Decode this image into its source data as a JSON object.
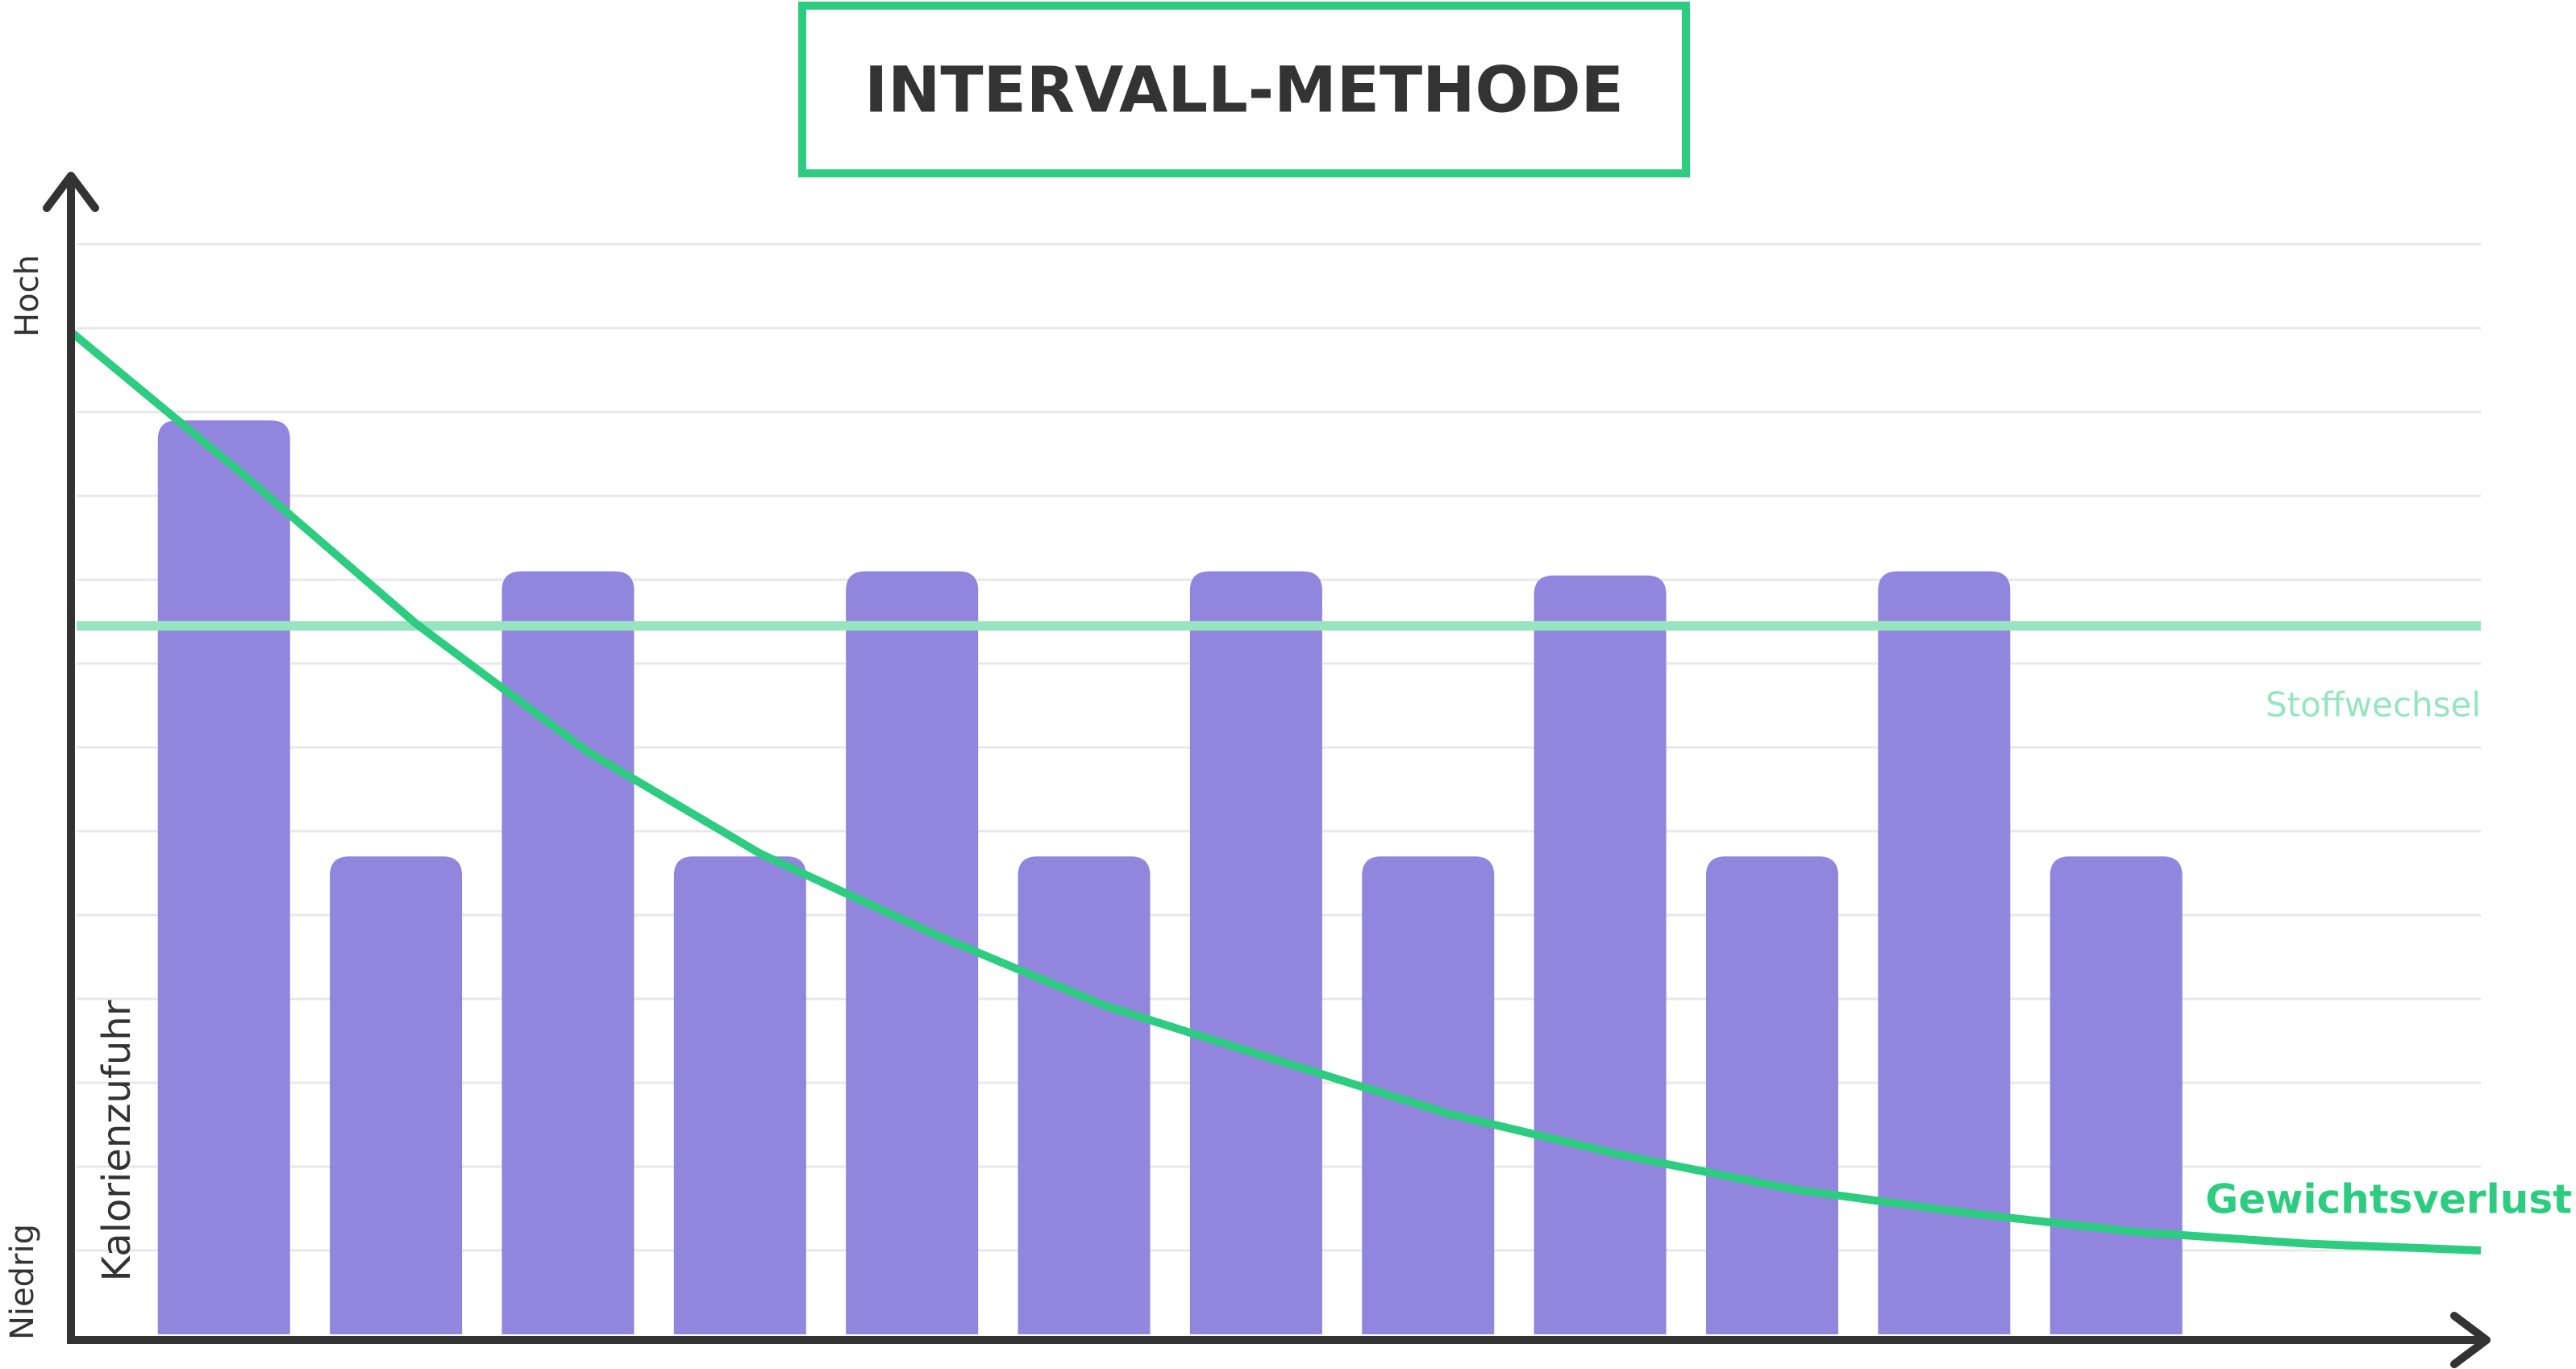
{
  "chart_data": {
    "type": "bar",
    "title": "INTERVALL-METHODE",
    "y_label": "Kalorienzufuhr",
    "y_high_label": "Hoch",
    "y_low_label": "Niedrig",
    "categories": [
      null,
      null,
      null,
      null,
      null,
      null,
      null,
      null,
      null,
      null,
      null,
      null
    ],
    "values": [
      10.9,
      5.7,
      9.1,
      5.7,
      9.1,
      5.7,
      9.1,
      5.7,
      9.05,
      5.7,
      9.1,
      5.7
    ],
    "color": "#9185de",
    "ylim": [
      0,
      14
    ],
    "grid": true,
    "reference_line": {
      "name": "Stoffwechsel",
      "value": 8.45,
      "color": "#95e6c0"
    },
    "curve": {
      "name": "Gewichtsverlust",
      "color": "#2ecc80",
      "xlim": [
        0,
        14
      ],
      "x": [
        0,
        1,
        2,
        3,
        4,
        5,
        6,
        7,
        8,
        9,
        10,
        11,
        12,
        13,
        14
      ],
      "values": [
        11.94,
        10.24,
        8.47,
        6.94,
        5.73,
        4.78,
        3.92,
        3.27,
        2.63,
        2.14,
        1.73,
        1.45,
        1.22,
        1.08,
        1.0
      ]
    }
  }
}
